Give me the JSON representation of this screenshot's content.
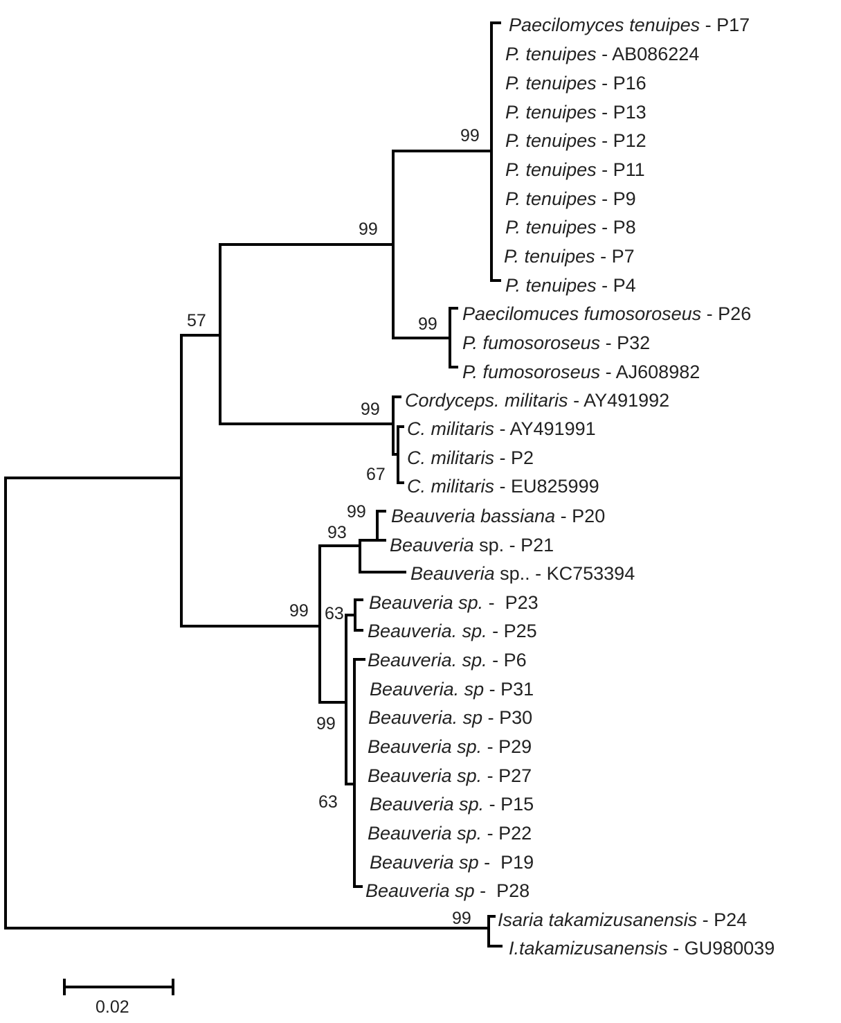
{
  "tree": {
    "leaves": [
      {
        "species": "Paecilomyces tenuipes",
        "sep": " - ",
        "id": "P17"
      },
      {
        "species": "P. tenuipes",
        "sep": " - ",
        "id": "AB086224"
      },
      {
        "species": "P. tenuipes",
        "sep": " - ",
        "id": "P16"
      },
      {
        "species": "P. tenuipes",
        "sep": " - ",
        "id": "P13"
      },
      {
        "species": "P. tenuipes",
        "sep": " - ",
        "id": "P12"
      },
      {
        "species": "P. tenuipes",
        "sep": " - ",
        "id": "P11"
      },
      {
        "species": "P. tenuipes",
        "sep": " - ",
        "id": "P9"
      },
      {
        "species": "P. tenuipes",
        "sep": " - ",
        "id": "P8"
      },
      {
        "species": "P. tenuipes",
        "sep": " - ",
        "id": "P7"
      },
      {
        "species": "P. tenuipes",
        "sep": " - ",
        "id": "P4"
      },
      {
        "species": "Paecilomuces fumosoroseus",
        "sep": " - ",
        "id": "P26"
      },
      {
        "species": "P. fumosoroseus",
        "sep": " - ",
        "id": "P32"
      },
      {
        "species": "P. fumosoroseus",
        "sep": " - ",
        "id": "AJ608982"
      },
      {
        "species": "Cordyceps. militaris",
        "sep": " - ",
        "id": "AY491992"
      },
      {
        "species": "C. militaris",
        "sep": " - ",
        "id": "AY491991"
      },
      {
        "species": "C. militaris",
        "sep": " - ",
        "id": "P2"
      },
      {
        "species": "C. militaris",
        "sep": " - ",
        "id": "EU825999"
      },
      {
        "species": "Beauveria bassiana",
        "sep": " - ",
        "id": "P20"
      },
      {
        "species": "Beauveria",
        "sep": " sp. - ",
        "id": "P21"
      },
      {
        "species": "Beauveria",
        "sep": " sp.. - ",
        "id": "KC753394"
      },
      {
        "species": "Beauveria sp.",
        "sep": " -  ",
        "id": "P23"
      },
      {
        "species": "Beauveria. sp.",
        "sep": " - ",
        "id": "P25"
      },
      {
        "species": "Beauveria. sp.",
        "sep": " - ",
        "id": "P6"
      },
      {
        "species": "Beauveria. sp",
        "sep": " - ",
        "id": "P31"
      },
      {
        "species": "Beauveria. sp",
        "sep": " - ",
        "id": "P30"
      },
      {
        "species": "Beauveria sp.",
        "sep": " - ",
        "id": "P29"
      },
      {
        "species": "Beauveria sp.",
        "sep": " - ",
        "id": "P27"
      },
      {
        "species": "Beauveria sp.",
        "sep": " - ",
        "id": "P15"
      },
      {
        "species": "Beauveria sp.",
        "sep": " - ",
        "id": "P22"
      },
      {
        "species": "Beauveria sp",
        "sep": " -  ",
        "id": "P19"
      },
      {
        "species": "Beauveria sp",
        "sep": " -  ",
        "id": "P28"
      },
      {
        "species": "Isaria takamizusanensis",
        "sep": " - ",
        "id": "P24"
      },
      {
        "species": "I.takamizusanensis",
        "sep": " - ",
        "id": "GU980039"
      }
    ],
    "bootstrap": [
      "99",
      "99",
      "99",
      "57",
      "99",
      "67",
      "99",
      "93",
      "99",
      "63",
      "99",
      "63",
      "99"
    ],
    "scale_label": "0.02"
  }
}
